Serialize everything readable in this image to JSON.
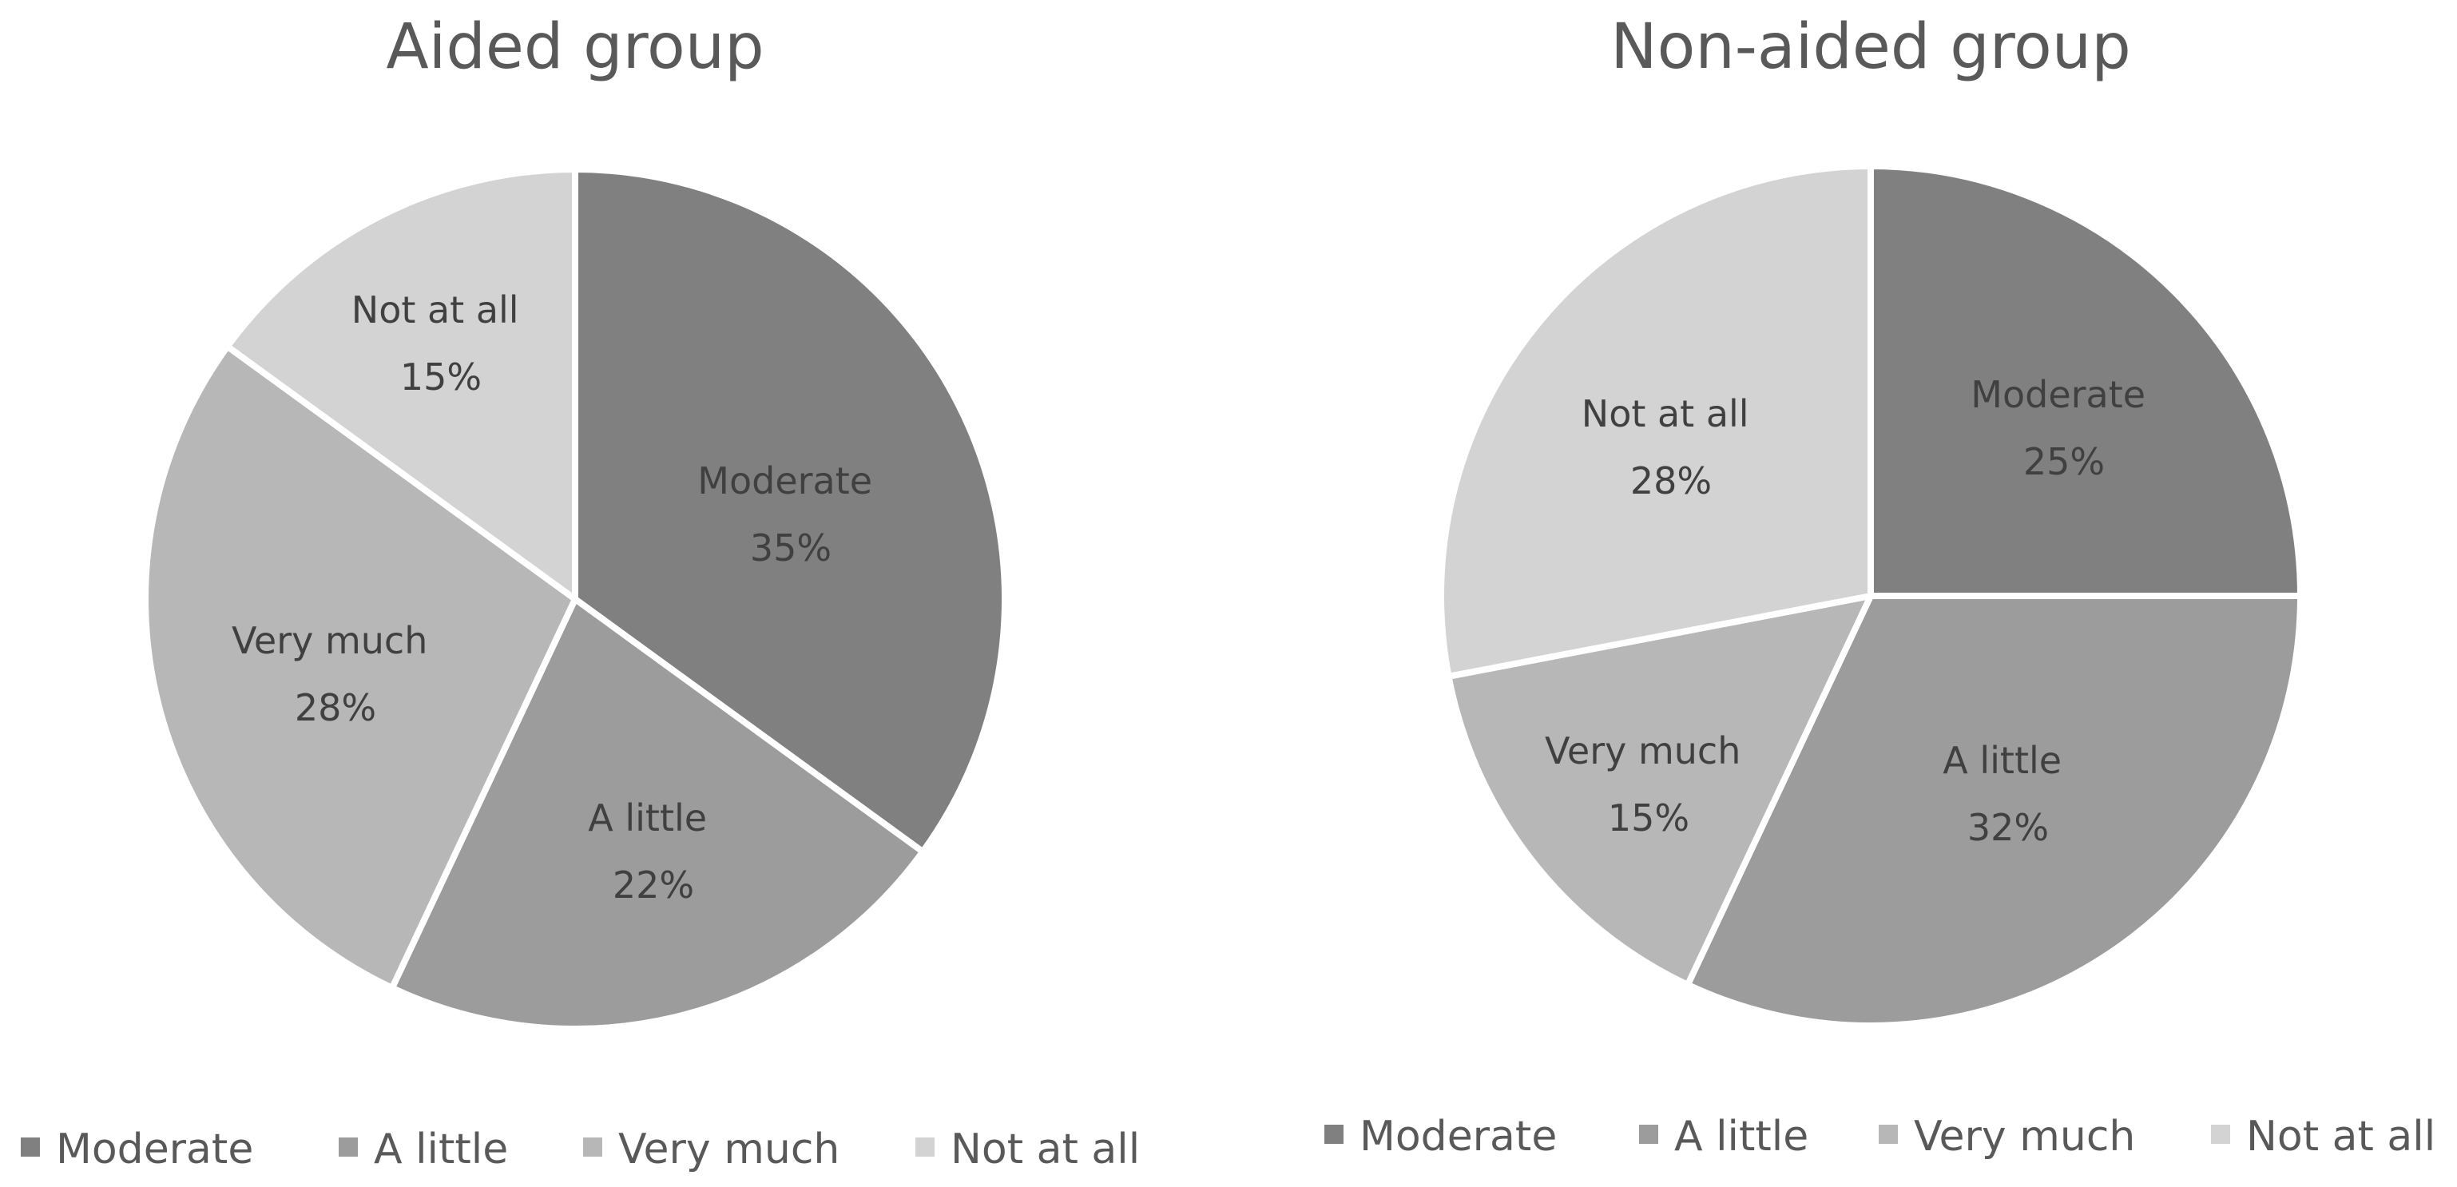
{
  "chart_data": [
    {
      "type": "pie",
      "title": "Aided group",
      "categories": [
        "Moderate",
        "A little",
        "Very much",
        "Not at all"
      ],
      "values": [
        35,
        22,
        28,
        15
      ],
      "value_labels": [
        "35%",
        "22%",
        "28%",
        "15%"
      ],
      "colors": [
        "#808080",
        "#9c9c9c",
        "#b7b7b7",
        "#d3d3d3"
      ],
      "legend_position": "bottom",
      "start_angle_deg": 0,
      "direction": "clockwise"
    },
    {
      "type": "pie",
      "title": "Non-aided group",
      "categories": [
        "Moderate",
        "A little",
        "Very much",
        "Not at all"
      ],
      "values": [
        25,
        32,
        15,
        28
      ],
      "value_labels": [
        "25%",
        "32%",
        "15%",
        "28%"
      ],
      "colors": [
        "#808080",
        "#9c9c9c",
        "#b7b7b7",
        "#d3d3d3"
      ],
      "legend_position": "bottom",
      "start_angle_deg": 0,
      "direction": "clockwise"
    }
  ]
}
